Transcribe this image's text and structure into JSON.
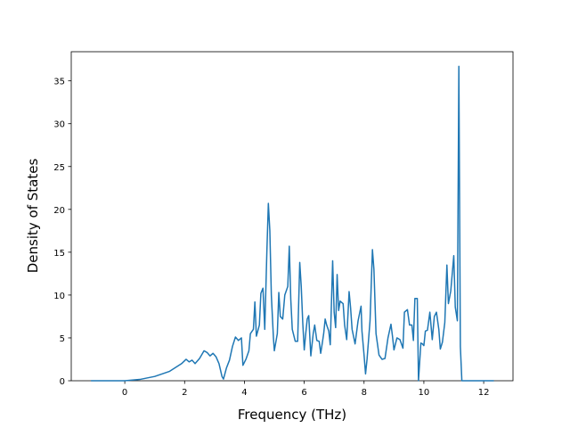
{
  "chart_data": {
    "type": "line",
    "xlabel": "Frequency (THz)",
    "ylabel": "Density of States",
    "xlim": [
      -1.79,
      12.98
    ],
    "ylim": [
      0,
      38.4
    ],
    "xticks": [
      0,
      2,
      4,
      6,
      8,
      10,
      12
    ],
    "yticks": [
      0,
      5,
      10,
      15,
      20,
      25,
      30,
      35
    ],
    "x": [
      -1.13,
      0,
      0.5,
      1,
      1.5,
      1.9,
      2.05,
      2.15,
      2.25,
      2.35,
      2.5,
      2.65,
      2.75,
      2.85,
      2.95,
      3.05,
      3.15,
      3.25,
      3.3,
      3.4,
      3.5,
      3.6,
      3.7,
      3.8,
      3.9,
      3.95,
      4.05,
      4.15,
      4.2,
      4.3,
      4.35,
      4.4,
      4.5,
      4.55,
      4.62,
      4.68,
      4.75,
      4.8,
      4.85,
      4.9,
      4.97,
      5.0,
      5.1,
      5.15,
      5.2,
      5.28,
      5.35,
      5.45,
      5.5,
      5.55,
      5.6,
      5.7,
      5.78,
      5.85,
      5.9,
      5.95,
      6.0,
      6.05,
      6.1,
      6.15,
      6.22,
      6.3,
      6.35,
      6.42,
      6.5,
      6.55,
      6.6,
      6.65,
      6.7,
      6.75,
      6.82,
      6.87,
      6.95,
      7.0,
      7.05,
      7.1,
      7.15,
      7.2,
      7.3,
      7.35,
      7.42,
      7.5,
      7.55,
      7.6,
      7.7,
      7.8,
      7.9,
      7.93,
      8.0,
      8.05,
      8.1,
      8.2,
      8.28,
      8.33,
      8.4,
      8.5,
      8.6,
      8.7,
      8.8,
      8.9,
      8.95,
      9.0,
      9.1,
      9.2,
      9.3,
      9.35,
      9.45,
      9.52,
      9.6,
      9.65,
      9.7,
      9.78,
      9.82,
      9.9,
      9.95,
      10.0,
      10.05,
      10.12,
      10.2,
      10.28,
      10.35,
      10.42,
      10.5,
      10.55,
      10.62,
      10.7,
      10.77,
      10.82,
      10.9,
      11.0,
      11.05,
      11.12,
      11.17,
      11.22,
      11.27,
      12.34
    ],
    "series": [
      {
        "color": "#1f77b4",
        "values": [
          0,
          0,
          0.15,
          0.5,
          1.1,
          2.0,
          2.5,
          2.2,
          2.4,
          2.0,
          2.6,
          3.5,
          3.3,
          2.9,
          3.2,
          2.8,
          2.0,
          0.5,
          0.2,
          1.5,
          2.4,
          4.0,
          5.1,
          4.7,
          5.0,
          1.8,
          2.5,
          3.5,
          5.5,
          6.0,
          9.2,
          5.2,
          6.5,
          10.2,
          10.8,
          6.0,
          15,
          20.7,
          17.5,
          10,
          5,
          3.5,
          5.5,
          10.3,
          7.5,
          7.2,
          10,
          11,
          15.7,
          9.5,
          6.0,
          4.6,
          4.6,
          13.8,
          11,
          6.8,
          3.6,
          5.5,
          7.2,
          7.6,
          2.9,
          5.5,
          6.5,
          4.7,
          4.6,
          3.2,
          4.3,
          5.5,
          7.2,
          6.5,
          5.8,
          4.2,
          14.0,
          8,
          6.2,
          12.4,
          8.2,
          9.3,
          9.0,
          6.5,
          4.8,
          10.4,
          8.5,
          6,
          4.3,
          7,
          8.7,
          5.8,
          3,
          0.8,
          2.5,
          7,
          15.3,
          13,
          5.5,
          3,
          2.5,
          2.6,
          5,
          6.6,
          5.2,
          3.6,
          5,
          4.8,
          3.8,
          8,
          8.3,
          6.5,
          6.5,
          4.7,
          9.6,
          9.6,
          0,
          4.4,
          4.3,
          4.1,
          5.8,
          5.9,
          8,
          4.8,
          7.5,
          8,
          6,
          3.7,
          4.5,
          6.8,
          13.5,
          9,
          10.5,
          14.6,
          8.6,
          7,
          36.7,
          4,
          0,
          0
        ]
      }
    ]
  }
}
